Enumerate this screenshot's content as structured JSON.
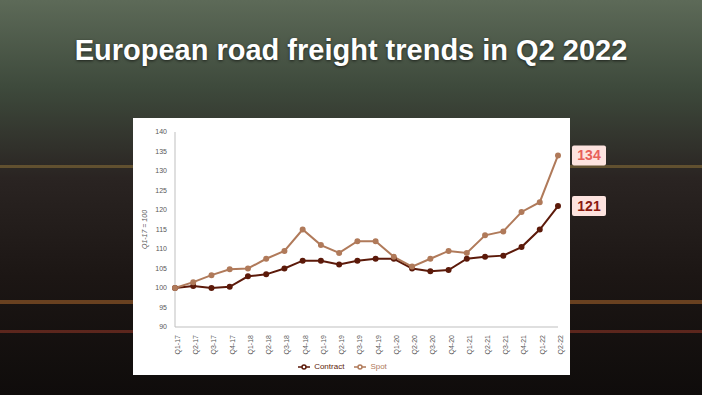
{
  "chart_data": {
    "type": "line",
    "title": "European road freight trends in Q2 2022",
    "y_label": "Q1-17 = 100",
    "categories": [
      "Q1-17",
      "Q2-17",
      "Q3-17",
      "Q4-17",
      "Q1-18",
      "Q2-18",
      "Q3-18",
      "Q4-18",
      "Q1-19",
      "Q2-19",
      "Q3-19",
      "Q4-19",
      "Q1-20",
      "Q2-20",
      "Q3-20",
      "Q4-20",
      "Q1-21",
      "Q2-21",
      "Q3-21",
      "Q4-21",
      "Q1-22",
      "Q2-22"
    ],
    "series": [
      {
        "name": "Contract",
        "color": "#5c1a0a",
        "values": [
          100,
          100.5,
          100,
          100.3,
          103,
          103.5,
          105,
          107,
          107,
          106,
          107,
          107.5,
          107.5,
          105,
          104.3,
          104.6,
          107.5,
          108,
          108.3,
          110.5,
          115,
          121
        ]
      },
      {
        "name": "Spot",
        "color": "#b07a5a",
        "values": [
          100,
          101.5,
          103.3,
          104.8,
          105,
          107.5,
          109.5,
          115,
          111,
          109,
          112,
          112,
          108,
          105.5,
          107.5,
          109.5,
          109,
          113.5,
          114.5,
          119.5,
          122,
          134
        ]
      }
    ],
    "ylim": [
      90,
      140
    ],
    "yticks": [
      90,
      95,
      100,
      105,
      110,
      115,
      120,
      125,
      130,
      135,
      140
    ],
    "grid": false,
    "legend": "bottom",
    "marker": "circle",
    "annotations": [
      {
        "text": "134",
        "series": "Spot",
        "category": "Q2-22",
        "color": "#e8605a"
      },
      {
        "text": "121",
        "series": "Contract",
        "category": "Q2-22",
        "color": "#8b1a10"
      }
    ]
  }
}
